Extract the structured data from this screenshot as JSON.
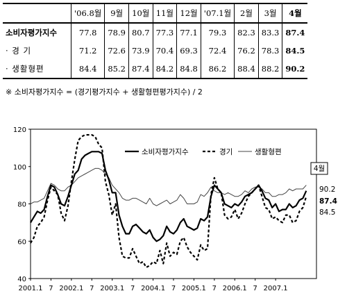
{
  "table": {
    "header": [
      "",
      "'06.8월",
      "9월",
      "10월",
      "11월",
      "12월",
      "'07.1월",
      "2월",
      "3월",
      "4월"
    ],
    "rows": [
      {
        "label": "소비자평가지수",
        "values": [
          "77.8",
          "78.9",
          "80.7",
          "77.3",
          "77.1",
          "79.3",
          "82.3",
          "83.3",
          "87.4"
        ]
      },
      {
        "label": "· 경 기",
        "values": [
          "71.2",
          "72.6",
          "73.9",
          "70.4",
          "69.3",
          "72.4",
          "76.2",
          "78.3",
          "84.5"
        ]
      },
      {
        "label": "· 생활형편",
        "values": [
          "84.4",
          "85.2",
          "87.4",
          "84.2",
          "84.8",
          "86.2",
          "88.4",
          "88.2",
          "90.2"
        ]
      }
    ]
  },
  "formula": "※ 소비자평가지수 = (경기평가지수 + 생활형편평가지수) / 2",
  "chart_data": {
    "type": "line",
    "ylim": [
      40,
      120
    ],
    "yticks": [
      "40",
      "60",
      "80",
      "100",
      "120"
    ],
    "xticks": [
      "2001.1",
      "7",
      "2002.1",
      "7",
      "2003.1",
      "7",
      "2004.1",
      "7",
      "2005.1",
      "7",
      "2006.1",
      "7",
      "2007.1"
    ],
    "x_start_month": 0,
    "badge": "4월",
    "end_labels": [
      "90.2",
      "87.4",
      "84.5"
    ],
    "series": [
      {
        "name": "소비자평가지수",
        "color": "#000000",
        "dash": "none",
        "width": 2.2,
        "values": [
          70,
          73,
          76,
          75,
          77,
          84,
          90,
          89,
          85,
          80,
          79,
          84,
          90,
          96,
          98,
          104,
          106,
          107,
          108,
          108,
          108,
          107,
          98,
          93,
          86,
          86,
          74,
          68,
          64,
          64,
          68,
          69,
          67,
          65,
          64,
          66,
          62,
          60,
          61,
          63,
          68,
          65,
          64,
          66,
          70,
          72,
          68,
          67,
          66,
          67,
          72,
          71,
          73,
          84,
          90,
          88,
          86,
          80,
          79,
          78,
          80,
          79,
          81,
          84,
          85,
          86,
          88,
          90,
          87,
          83,
          82,
          78,
          80,
          76,
          77,
          77,
          80,
          78,
          79,
          82,
          83,
          87
        ]
      },
      {
        "name": "경기",
        "color": "#000000",
        "dash": "4,3",
        "width": 2.2,
        "values": [
          59,
          62,
          68,
          70,
          73,
          82,
          89,
          87,
          85,
          75,
          71,
          79,
          92,
          104,
          114,
          116,
          117,
          117,
          117,
          116,
          112,
          110,
          92,
          85,
          74,
          80,
          62,
          52,
          51,
          51,
          56,
          52,
          48,
          49,
          46,
          47,
          49,
          48,
          55,
          48,
          59,
          52,
          54,
          53,
          60,
          62,
          57,
          54,
          52,
          50,
          58,
          55,
          56,
          85,
          94,
          88,
          86,
          74,
          72,
          73,
          77,
          72,
          75,
          80,
          84,
          86,
          88,
          90,
          84,
          78,
          77,
          72,
          73,
          71,
          70,
          74,
          74,
          70,
          71,
          76,
          78,
          84
        ]
      },
      {
        "name": "생활형편",
        "color": "#444444",
        "dash": "none",
        "width": 1.0,
        "values": [
          80,
          81,
          81,
          82,
          83,
          87,
          91,
          90,
          88,
          87,
          87,
          89,
          90,
          92,
          94,
          95,
          96,
          97,
          98,
          99,
          99,
          98,
          96,
          94,
          90,
          88,
          86,
          83,
          82,
          82,
          83,
          83,
          82,
          81,
          80,
          83,
          80,
          79,
          80,
          81,
          82,
          80,
          81,
          82,
          85,
          83,
          80,
          80,
          80,
          81,
          85,
          84,
          86,
          89,
          87,
          86,
          86,
          85,
          86,
          85,
          84,
          84,
          85,
          87,
          86,
          88,
          89,
          89,
          88,
          86,
          86,
          84,
          84,
          85,
          85,
          86,
          88,
          87,
          88,
          88,
          88,
          90
        ]
      }
    ]
  }
}
